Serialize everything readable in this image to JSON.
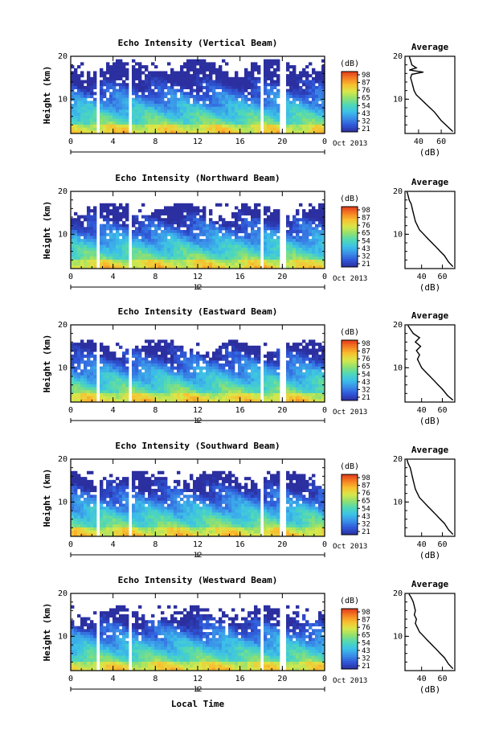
{
  "colors": {
    "colormap": [
      "#2b2fa0",
      "#2f57d8",
      "#3a8ee8",
      "#3cc0e8",
      "#4fd8b8",
      "#8fe070",
      "#d8e84a",
      "#f8c030",
      "#f57f22",
      "#e33a1c"
    ]
  },
  "chart_data": [
    {
      "type": "heatmap",
      "title": "Echo Intensity (Vertical Beam)",
      "ylabel": "Height (km)",
      "x_ticks": [
        "0",
        "4",
        "8",
        "12",
        "16",
        "20",
        "0"
      ],
      "y_ticks": [
        "20",
        "10"
      ],
      "xlim": [
        0,
        24
      ],
      "ylim": [
        2,
        20
      ],
      "colorbar": {
        "unit": "(dB)",
        "ticks": [
          "98",
          "87",
          "76",
          "65",
          "54",
          "43",
          "32",
          "21"
        ]
      },
      "data_gaps_hours": [
        [
          2.3,
          2.6
        ],
        [
          5.4,
          5.8
        ],
        [
          17.9,
          18.1
        ],
        [
          19.8,
          20.3
        ]
      ],
      "echo_top_km": 19.5,
      "profile": {
        "title": "Average",
        "xlabel": "(dB)",
        "x_ticks": [
          "40",
          "60"
        ],
        "y_ticks": [
          "20",
          "10"
        ],
        "xlim": [
          28,
          72
        ],
        "ylim": [
          2,
          20
        ],
        "height": [
          2.5,
          4,
          5,
          6,
          7,
          8,
          9,
          10,
          11,
          12,
          13,
          14,
          15,
          15.8,
          16.3,
          16.8,
          17.3,
          18,
          19,
          19.8
        ],
        "value": [
          70,
          64,
          60,
          57,
          54,
          50,
          46,
          42,
          38,
          36,
          35,
          34,
          33,
          34,
          44,
          32,
          38,
          34,
          33,
          32
        ]
      }
    },
    {
      "type": "heatmap",
      "title": "Echo Intensity (Northward Beam)",
      "ylabel": "Height (km)",
      "x_ticks": [
        "0",
        "4",
        "8",
        "12",
        "16",
        "20",
        "0"
      ],
      "y_ticks": [
        "20",
        "10"
      ],
      "xlim": [
        0,
        24
      ],
      "ylim": [
        2,
        20
      ],
      "center_tick": "12",
      "colorbar": {
        "unit": "(dB)",
        "ticks": [
          "98",
          "87",
          "76",
          "65",
          "54",
          "43",
          "32",
          "21"
        ]
      },
      "data_gaps_hours": [
        [
          2.3,
          2.6
        ],
        [
          5.4,
          5.8
        ],
        [
          17.9,
          18.1
        ],
        [
          19.8,
          20.3
        ]
      ],
      "echo_top_km": 17.5,
      "profile": {
        "title": "Average",
        "xlabel": "(dB)",
        "x_ticks": [
          "40",
          "60"
        ],
        "y_ticks": [
          "20",
          "10"
        ],
        "xlim": [
          24,
          72
        ],
        "ylim": [
          2,
          20
        ],
        "height": [
          2.5,
          3.5,
          5,
          6,
          7,
          8,
          9,
          10,
          11,
          12,
          13,
          14,
          15,
          16,
          17,
          18,
          19,
          19.8
        ],
        "value": [
          70,
          66,
          62,
          58,
          54,
          50,
          46,
          42,
          38,
          36,
          34,
          33,
          32,
          31,
          30,
          28,
          27,
          26
        ]
      }
    },
    {
      "type": "heatmap",
      "title": "Echo Intensity (Eastward Beam)",
      "ylabel": "Height (km)",
      "x_ticks": [
        "0",
        "4",
        "8",
        "12",
        "16",
        "20",
        "0"
      ],
      "y_ticks": [
        "20",
        "10"
      ],
      "xlim": [
        0,
        24
      ],
      "ylim": [
        2,
        20
      ],
      "center_tick": "12",
      "colorbar": {
        "unit": "(dB)",
        "ticks": [
          "98",
          "87",
          "76",
          "65",
          "54",
          "43",
          "32",
          "21"
        ]
      },
      "data_gaps_hours": [
        [
          2.3,
          2.6
        ],
        [
          5.4,
          5.8
        ],
        [
          17.9,
          18.1
        ],
        [
          19.8,
          20.3
        ]
      ],
      "echo_top_km": 16.5,
      "profile": {
        "title": "Average",
        "xlabel": "(dB)",
        "x_ticks": [
          "40",
          "60"
        ],
        "y_ticks": [
          "20",
          "10"
        ],
        "xlim": [
          24,
          72
        ],
        "ylim": [
          2,
          20
        ],
        "height": [
          2.5,
          3.5,
          5,
          6,
          7,
          8,
          9,
          10,
          11,
          12,
          13,
          14,
          15,
          16,
          17,
          18,
          19,
          19.8
        ],
        "value": [
          70,
          65,
          60,
          56,
          52,
          48,
          44,
          40,
          38,
          36,
          38,
          35,
          39,
          34,
          38,
          32,
          29,
          27
        ]
      }
    },
    {
      "type": "heatmap",
      "title": "Echo Intensity (Southward Beam)",
      "ylabel": "Height (km)",
      "x_ticks": [
        "0",
        "4",
        "8",
        "12",
        "16",
        "20",
        "0"
      ],
      "y_ticks": [
        "20",
        "10"
      ],
      "xlim": [
        0,
        24
      ],
      "ylim": [
        2,
        20
      ],
      "center_tick": "12",
      "colorbar": {
        "unit": "(dB)",
        "ticks": [
          "98",
          "87",
          "76",
          "65",
          "54",
          "43",
          "32",
          "21"
        ]
      },
      "data_gaps_hours": [
        [
          2.3,
          2.6
        ],
        [
          5.4,
          5.8
        ],
        [
          17.9,
          18.1
        ],
        [
          19.8,
          20.3
        ]
      ],
      "echo_top_km": 17.5,
      "profile": {
        "title": "Average",
        "xlabel": "(dB)",
        "x_ticks": [
          "40",
          "60"
        ],
        "y_ticks": [
          "20",
          "10"
        ],
        "xlim": [
          24,
          72
        ],
        "ylim": [
          2,
          20
        ],
        "height": [
          2.5,
          3.5,
          5,
          6,
          7,
          8,
          9,
          10,
          11,
          12,
          13,
          14,
          15,
          16,
          17,
          18,
          19,
          19.8
        ],
        "value": [
          70,
          66,
          62,
          58,
          54,
          50,
          46,
          42,
          38,
          36,
          34,
          33,
          32,
          31,
          30,
          29,
          27,
          26
        ]
      }
    },
    {
      "type": "heatmap",
      "title": "Echo Intensity (Westward Beam)",
      "ylabel": "Height (km)",
      "x_ticks": [
        "0",
        "4",
        "8",
        "12",
        "16",
        "20",
        "0"
      ],
      "y_ticks": [
        "20",
        "10"
      ],
      "xlim": [
        0,
        24
      ],
      "ylim": [
        2,
        20
      ],
      "center_tick": "12",
      "colorbar": {
        "unit": "(dB)",
        "ticks": [
          "98",
          "87",
          "76",
          "65",
          "54",
          "43",
          "32",
          "21"
        ]
      },
      "data_gaps_hours": [
        [
          2.3,
          2.6
        ],
        [
          5.4,
          5.8
        ],
        [
          17.9,
          18.1
        ],
        [
          19.8,
          20.3
        ]
      ],
      "echo_top_km": 17,
      "profile": {
        "title": "Average",
        "xlabel": "(dB)",
        "x_ticks": [
          "40",
          "60"
        ],
        "y_ticks": [
          "20",
          "10"
        ],
        "xlim": [
          24,
          72
        ],
        "ylim": [
          2,
          20
        ],
        "height": [
          2.5,
          3.5,
          5,
          6,
          7,
          8,
          9,
          10,
          11,
          12,
          13,
          14,
          15,
          16,
          17,
          18,
          19,
          19.8
        ],
        "value": [
          70,
          66,
          62,
          58,
          54,
          50,
          46,
          42,
          38,
          36,
          34,
          35,
          33,
          34,
          33,
          32,
          30,
          28
        ]
      }
    }
  ],
  "date_label": "Oct 2013",
  "xlabel": "Local Time"
}
